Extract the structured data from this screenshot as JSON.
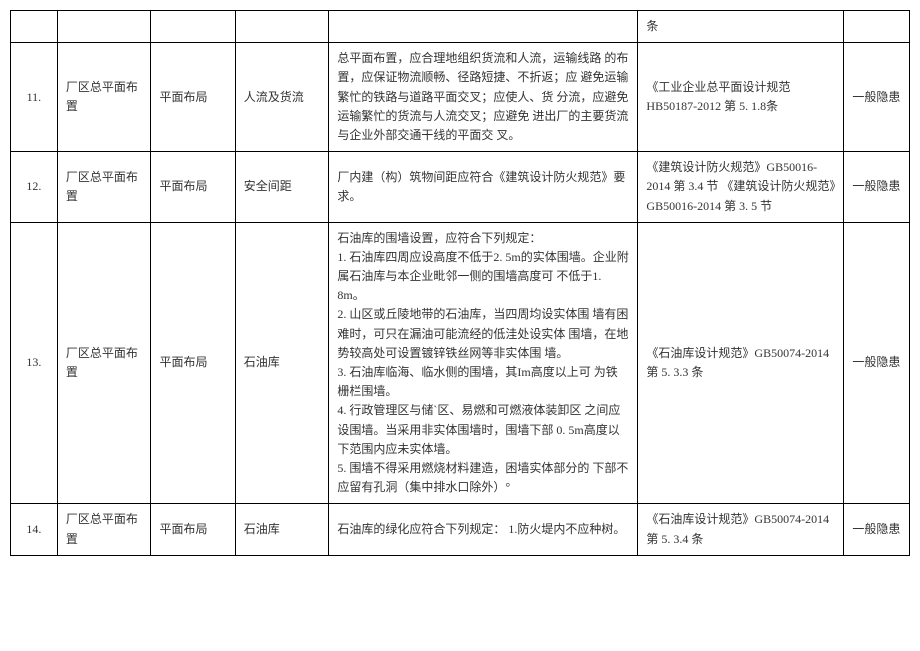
{
  "table": {
    "border_color": "#000000",
    "background_color": "#ffffff",
    "text_color": "#333333",
    "font_size": 12,
    "rows": [
      {
        "num": "",
        "item": "",
        "cat1": "",
        "cat2": "",
        "desc": "",
        "ref": "条",
        "level": ""
      },
      {
        "num": "11.",
        "item": "厂区总平面布置",
        "cat1": "平面布局",
        "cat2": "人流及货流",
        "desc": "总平面布置，应合理地组织货流和人流，运输线路 的布置，应保证物流顺畅、径路短捷、不折返；应 避免运输繁忙的铁路与道路平面交叉；应使人、货 分流，应避免运输繁忙的货流与人流交叉；应避免 进出厂的主要货流与企业外部交通干线的平面交 叉。",
        "ref": "《工业企业总平面设计规范HB50187-2012 第 5. 1.8条",
        "level": "一般隐患"
      },
      {
        "num": "12.",
        "item": "厂区总平面布置",
        "cat1": "平面布局",
        "cat2": "安全间距",
        "desc": "厂内建（构）筑物间距应符合《建筑设计防火规范》要求。",
        "ref": "《建筑设计防火规范》GB50016-2014 第 3.4 节 《建筑设计防火规范》GB50016-2014 第 3. 5 节",
        "level": "一般隐患"
      },
      {
        "num": "13.",
        "item": "厂区总平面布置",
        "cat1": "平面布局",
        "cat2": "石油库",
        "desc": "石油库的围墙设置，应符合下列规定：\n1. 石油库四周应设高度不低于2. 5m的实体围墙。企业附属石油库与本企业毗邻一侧的围墙高度可 不低于1. 8m。\n2. 山区或丘陵地带的石油库，当四周均设实体围 墙有困难时，可只在漏油可能流经的低洼处设实体 围墙，在地势较高处可设置镀锌铁丝网等非实体围 墙。\n3. 石油库临海、临水侧的围墙，其Im高度以上可 为铁栅栏围墙。\n4. 行政管理区与储`区、易燃和可燃液体装卸区 之间应设围墙。当采用非实体围墙时，围墙下部 0. 5m高度以下范围内应未实体墙。\n5. 围墙不得采用燃烧材料建造，困墙实体部分的 下部不应留有孔洞（集中排水口除外）°",
        "ref": "《石油库设计规范》GB50074-2014 第 5. 3.3 条",
        "level": "一般隐患"
      },
      {
        "num": "14.",
        "item": "厂区总平面布置",
        "cat1": "平面布局",
        "cat2": "石油库",
        "desc": "石油库的绿化应符合下列规定： 1.防火堤内不应种树。",
        "ref": "《石油库设计规范》GB50074-2014 第 5. 3.4 条",
        "level": "一般隐患"
      }
    ]
  }
}
